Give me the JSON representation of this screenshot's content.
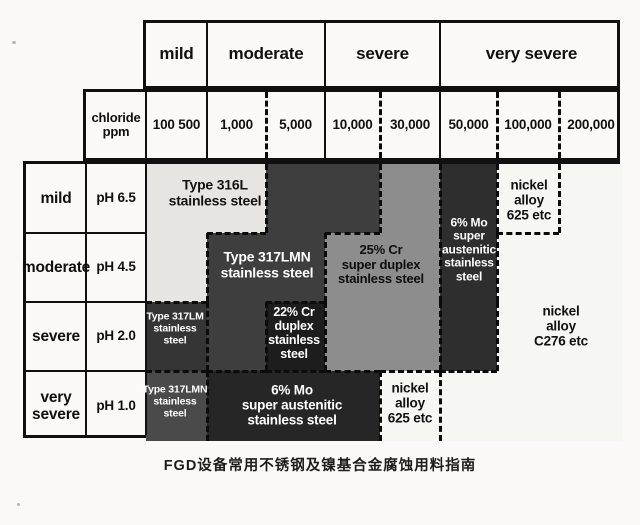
{
  "caption": "FGD设备常用不锈钢及镍基合金腐蚀用料指南",
  "header": {
    "severity_labels": [
      "mild",
      "moderate",
      "severe",
      "very severe"
    ],
    "chloride_label": "chloride\nppm",
    "chloride_values": [
      "100  500",
      "1,000",
      "5,000",
      "10,000",
      "30,000",
      "50,000",
      "100,000",
      "200,000"
    ]
  },
  "row_labels": [
    {
      "severity": "mild",
      "ph": "pH 6.5"
    },
    {
      "severity": "moderate",
      "ph": "pH 4.5"
    },
    {
      "severity": "severe",
      "ph": "pH 2.0"
    },
    {
      "severity": "very\nsevere",
      "ph": "pH 1.0"
    }
  ],
  "materials": {
    "m316L": {
      "name": "Type 316L stainless steel",
      "label": "Type 316L\nstainless steel",
      "color": "#e6e5e1",
      "text_color": "#121212"
    },
    "m317LMN": {
      "name": "Type 317LMN stainless steel",
      "label": "Type 317LMN\nstainless steel",
      "color": "#3e3e3e",
      "text_color": "#ffffff"
    },
    "m317LM": {
      "name": "Type 317LM stainless steel",
      "label": "Type 317LM\nstainless\nsteel",
      "color": "#353535",
      "text_color": "#ffffff"
    },
    "m317LMNb": {
      "name": "Type 317LMN stainless steel",
      "label": "Type 317LMN\nstainless\nsteel",
      "color": "#4a4a4a",
      "text_color": "#ffffff"
    },
    "m22Cr": {
      "name": "22% Cr duplex stainless steel",
      "label": "22% Cr\nduplex\nstainless\nsteel",
      "color": "#1d1d1d",
      "text_color": "#ffffff"
    },
    "m25Cr": {
      "name": "25% Cr super duplex stainless steel",
      "label": "25% Cr\nsuper duplex\nstainless steel",
      "color": "#8d8d8d",
      "text_color": "#0d0d0d"
    },
    "m6Mo": {
      "name": "6% Mo super austenitic stainless steel",
      "label": "6% Mo\nsuper\naustenitic\nstainless\nsteel",
      "color": "#2e2e2e",
      "text_color": "#ffffff"
    },
    "m6Mob": {
      "name": "6% Mo super austenitic stainless steel",
      "label": "6% Mo\nsuper austenitic\nstainless steel",
      "color": "#262626",
      "text_color": "#ffffff"
    },
    "m625": {
      "name": "nickel alloy 625 etc",
      "label": "nickel\nalloy\n625 etc",
      "color": "#f6f6f3",
      "text_color": "#111111"
    },
    "mC276": {
      "name": "nickel alloy C276 etc",
      "label": "nickel alloy\nC276 etc",
      "color": "#f6f6f3",
      "text_color": "#111111"
    }
  },
  "chart_data": {
    "type": "heatmap",
    "title": "FGD设备常用不锈钢及镍基合金腐蚀用料指南",
    "x_axis": {
      "label": "chloride ppm",
      "groups": [
        {
          "severity": "mild",
          "ticks": [
            "100",
            "500"
          ]
        },
        {
          "severity": "moderate",
          "ticks": [
            "1,000",
            "5,000"
          ]
        },
        {
          "severity": "severe",
          "ticks": [
            "10,000",
            "30,000"
          ]
        },
        {
          "severity": "very severe",
          "ticks": [
            "50,000",
            "100,000",
            "200,000"
          ]
        }
      ]
    },
    "y_axis": {
      "label": "pH",
      "categories": [
        {
          "severity": "mild",
          "ph": "pH 6.5"
        },
        {
          "severity": "moderate",
          "ph": "pH 4.5"
        },
        {
          "severity": "severe",
          "ph": "pH 2.0"
        },
        {
          "severity": "very severe",
          "ph": "pH 1.0"
        }
      ]
    },
    "columns": [
      "100-500",
      "1,000",
      "5,000",
      "10,000",
      "30,000",
      "50,000",
      "100,000",
      "200,000"
    ],
    "matrix": [
      [
        "m316L",
        "m316L",
        "m317LMN",
        "m317LMN",
        "m25Cr",
        "m6Mo",
        "m625",
        "mC276"
      ],
      [
        "m316L",
        "m317LMN",
        "m317LMN",
        "m25Cr",
        "m25Cr",
        "m6Mo",
        "mC276",
        "mC276"
      ],
      [
        "m317LM",
        "m317LMN",
        "m22Cr",
        "m25Cr",
        "m25Cr",
        "m6Mo",
        "mC276",
        "mC276"
      ],
      [
        "m317LMNb",
        "m6Mob",
        "m6Mob",
        "m6Mob",
        "m625",
        "mC276",
        "mC276",
        "mC276"
      ]
    ],
    "legend_position": "none",
    "grid": false
  }
}
